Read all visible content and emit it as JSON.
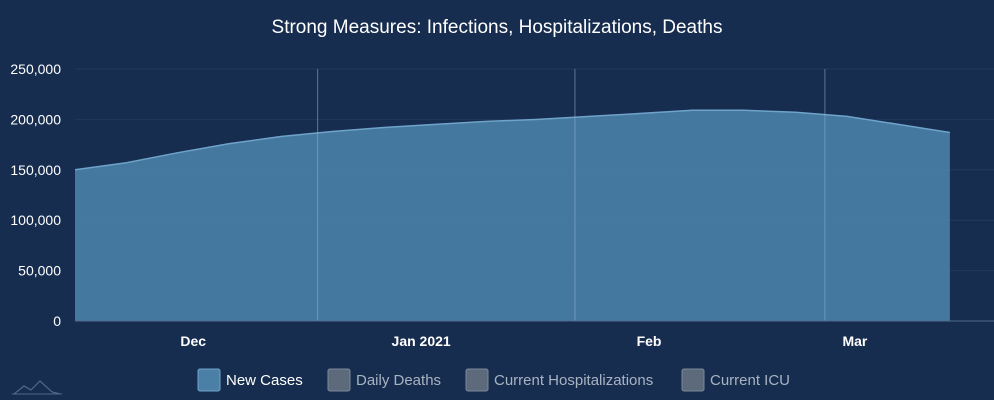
{
  "chart_data": {
    "type": "area",
    "title": "Strong Measures: Infections, Hospitalizations, Deaths",
    "y_ticks": [
      "250,000",
      "200,000",
      "150,000",
      "100,000",
      "50,000",
      "0"
    ],
    "ylim": [
      0,
      250000
    ],
    "x_tick_labels": [
      "Dec",
      "Jan 2021",
      "Feb",
      "Mar"
    ],
    "grid": true,
    "legend_position": "bottom-center",
    "series": [
      {
        "name": "New Cases",
        "color": "#4a7fa6",
        "active": true,
        "x": [
          "2020-11-19",
          "2020-11-26",
          "2020-12-03",
          "2020-12-10",
          "2020-12-17",
          "2020-12-24",
          "2020-12-31",
          "2021-01-07",
          "2021-01-14",
          "2021-01-21",
          "2021-01-28",
          "2021-02-04",
          "2021-02-11",
          "2021-02-18",
          "2021-02-25",
          "2021-03-04",
          "2021-03-11",
          "2021-03-18"
        ],
        "values": [
          150000,
          157000,
          167000,
          176000,
          183000,
          188000,
          192000,
          195000,
          198000,
          200000,
          203000,
          206000,
          209000,
          209000,
          207000,
          203000,
          195000,
          187000
        ]
      },
      {
        "name": "Daily Deaths",
        "color": "#5d6a7c",
        "active": false
      },
      {
        "name": "Current Hospitalizations",
        "color": "#5d6a7c",
        "active": false
      },
      {
        "name": "Current ICU",
        "color": "#5d6a7c",
        "active": false
      }
    ]
  }
}
